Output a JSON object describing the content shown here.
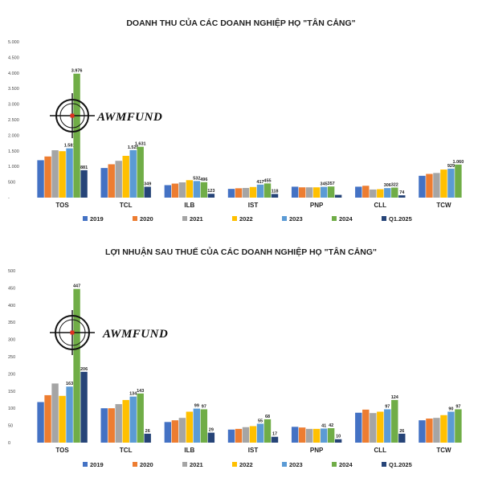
{
  "watermark": {
    "text": "AWMFUND"
  },
  "colors": {
    "2019": "#4472C4",
    "2020": "#ED7D31",
    "2021": "#A5A5A5",
    "2022": "#FFC000",
    "2023": "#5B9BD5",
    "2024": "#70AD47",
    "Q1.2025": "#264478",
    "highlight_label": "#7030A0"
  },
  "chart_data": [
    {
      "type": "bar",
      "title": "DOANH THU CỦA CÁC DOANH NGHIỆP HỌ \"TÂN CẢNG\"",
      "categories": [
        "TOS",
        "TCL",
        "ILB",
        "IST",
        "PNP",
        "CLL",
        "TCW"
      ],
      "ylim": [
        0,
        5000
      ],
      "yticks": [
        0,
        500,
        1000,
        1500,
        2000,
        2500,
        3000,
        3500,
        4000,
        4500,
        5000
      ],
      "ytick_labels": [
        "-",
        "500",
        "1.000",
        "1.500",
        "2.000",
        "2.500",
        "3.000",
        "3.500",
        "4.000",
        "4.500",
        "5.000"
      ],
      "grid": false,
      "legend": "bottom",
      "series": [
        {
          "name": "2019",
          "values": [
            1200,
            950,
            400,
            280,
            350,
            350,
            700
          ],
          "labels": [
            "",
            "",
            "",
            "",
            "",
            "",
            ""
          ]
        },
        {
          "name": "2020",
          "values": [
            1320,
            1070,
            450,
            300,
            330,
            380,
            760
          ],
          "labels": [
            "",
            "",
            "",
            "",
            "",
            "",
            ""
          ]
        },
        {
          "name": "2021",
          "values": [
            1520,
            1180,
            490,
            310,
            330,
            260,
            790
          ],
          "labels": [
            "",
            "",
            "",
            "",
            "",
            "",
            ""
          ]
        },
        {
          "name": "2022",
          "values": [
            1490,
            1340,
            560,
            340,
            330,
            270,
            900
          ],
          "labels": [
            "",
            "",
            "",
            "",
            "",
            "",
            ""
          ]
        },
        {
          "name": "2023",
          "values": [
            1581,
            1525,
            532,
            417,
            345,
            306,
            929
          ],
          "labels": [
            "1.581",
            "1.525",
            "532",
            "417",
            "345",
            "306",
            "929"
          ]
        },
        {
          "name": "2024",
          "values": [
            3976,
            1631,
            496,
            455,
            357,
            322,
            1060
          ],
          "labels": [
            "3.976",
            "1.631",
            "496",
            "455",
            "357",
            "322",
            "1.060"
          ]
        },
        {
          "name": "Q1.2025",
          "values": [
            881,
            349,
            123,
            118,
            88,
            74,
            null
          ],
          "labels": [
            "881",
            "349",
            "123",
            "118",
            "",
            "74",
            ""
          ]
        }
      ]
    },
    {
      "type": "bar",
      "title": "LỢI NHUẬN SAU THUẾ CỦA CÁC DOANH NGHIỆP HỌ \"TÂN CẢNG\"",
      "categories": [
        "TOS",
        "TCL",
        "ILB",
        "IST",
        "PNP",
        "CLL",
        "TCW"
      ],
      "ylim": [
        0,
        500
      ],
      "yticks": [
        0,
        50,
        100,
        150,
        200,
        250,
        300,
        350,
        400,
        450,
        500
      ],
      "ytick_labels": [
        "0",
        "50",
        "100",
        "150",
        "200",
        "250",
        "300",
        "350",
        "400",
        "450",
        "500"
      ],
      "grid": false,
      "legend": "bottom",
      "series": [
        {
          "name": "2019",
          "values": [
            118,
            100,
            60,
            38,
            46,
            87,
            65
          ],
          "labels": [
            "",
            "",
            "",
            "",
            "",
            "",
            ""
          ]
        },
        {
          "name": "2020",
          "values": [
            138,
            100,
            65,
            40,
            44,
            96,
            70
          ],
          "labels": [
            "",
            "",
            "",
            "",
            "",
            "",
            ""
          ]
        },
        {
          "name": "2021",
          "values": [
            172,
            112,
            72,
            45,
            40,
            86,
            72
          ],
          "labels": [
            "",
            "",
            "",
            "",
            "",
            "",
            ""
          ]
        },
        {
          "name": "2022",
          "values": [
            136,
            124,
            90,
            48,
            40,
            90,
            80
          ],
          "labels": [
            "",
            "",
            "",
            "",
            "",
            "",
            ""
          ]
        },
        {
          "name": "2023",
          "values": [
            163,
            134,
            99,
            55,
            41,
            97,
            90
          ],
          "labels": [
            "163",
            "134",
            "99",
            "55",
            "41",
            "97",
            "90"
          ]
        },
        {
          "name": "2024",
          "values": [
            447,
            143,
            97,
            68,
            42,
            124,
            97
          ],
          "labels": [
            "447",
            "143",
            "97",
            "68",
            "42",
            "124",
            "97"
          ]
        },
        {
          "name": "Q1.2025",
          "values": [
            206,
            26,
            29,
            17,
            10,
            26,
            null
          ],
          "labels": [
            "206",
            "26",
            "29",
            "17",
            "10",
            "26",
            ""
          ]
        }
      ]
    }
  ]
}
